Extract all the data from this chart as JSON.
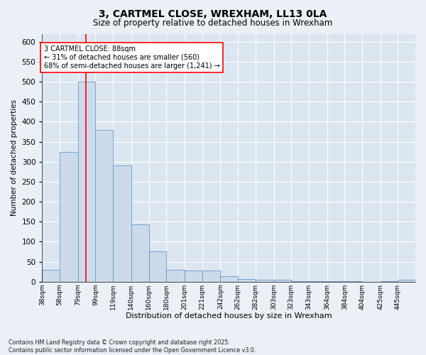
{
  "title": "3, CARTMEL CLOSE, WREXHAM, LL13 0LA",
  "subtitle": "Size of property relative to detached houses in Wrexham",
  "xlabel": "Distribution of detached houses by size in Wrexham",
  "ylabel": "Number of detached properties",
  "bar_color": "#ccdaeb",
  "bar_edge_color": "#6699cc",
  "bg_color": "#dce6f0",
  "grid_color": "#ffffff",
  "vline_x": 88,
  "vline_color": "red",
  "annotation_text": "3 CARTMEL CLOSE: 88sqm\n← 31% of detached houses are smaller (560)\n68% of semi-detached houses are larger (1,241) →",
  "annotation_edge_color": "red",
  "footer": "Contains HM Land Registry data © Crown copyright and database right 2025.\nContains public sector information licensed under the Open Government Licence v3.0.",
  "bin_labels": [
    "38sqm",
    "58sqm",
    "79sqm",
    "99sqm",
    "119sqm",
    "140sqm",
    "160sqm",
    "180sqm",
    "201sqm",
    "221sqm",
    "242sqm",
    "262sqm",
    "282sqm",
    "303sqm",
    "323sqm",
    "343sqm",
    "364sqm",
    "384sqm",
    "404sqm",
    "425sqm",
    "445sqm"
  ],
  "bin_edges": [
    38,
    58,
    79,
    99,
    119,
    140,
    160,
    180,
    201,
    221,
    242,
    262,
    282,
    303,
    323,
    343,
    364,
    384,
    404,
    425,
    445,
    465
  ],
  "counts": [
    30,
    325,
    500,
    380,
    290,
    143,
    75,
    30,
    28,
    28,
    14,
    6,
    5,
    4,
    2,
    2,
    1,
    1,
    0,
    1,
    4
  ],
  "ylim": [
    0,
    620
  ],
  "yticks": [
    0,
    50,
    100,
    150,
    200,
    250,
    300,
    350,
    400,
    450,
    500,
    550,
    600
  ]
}
